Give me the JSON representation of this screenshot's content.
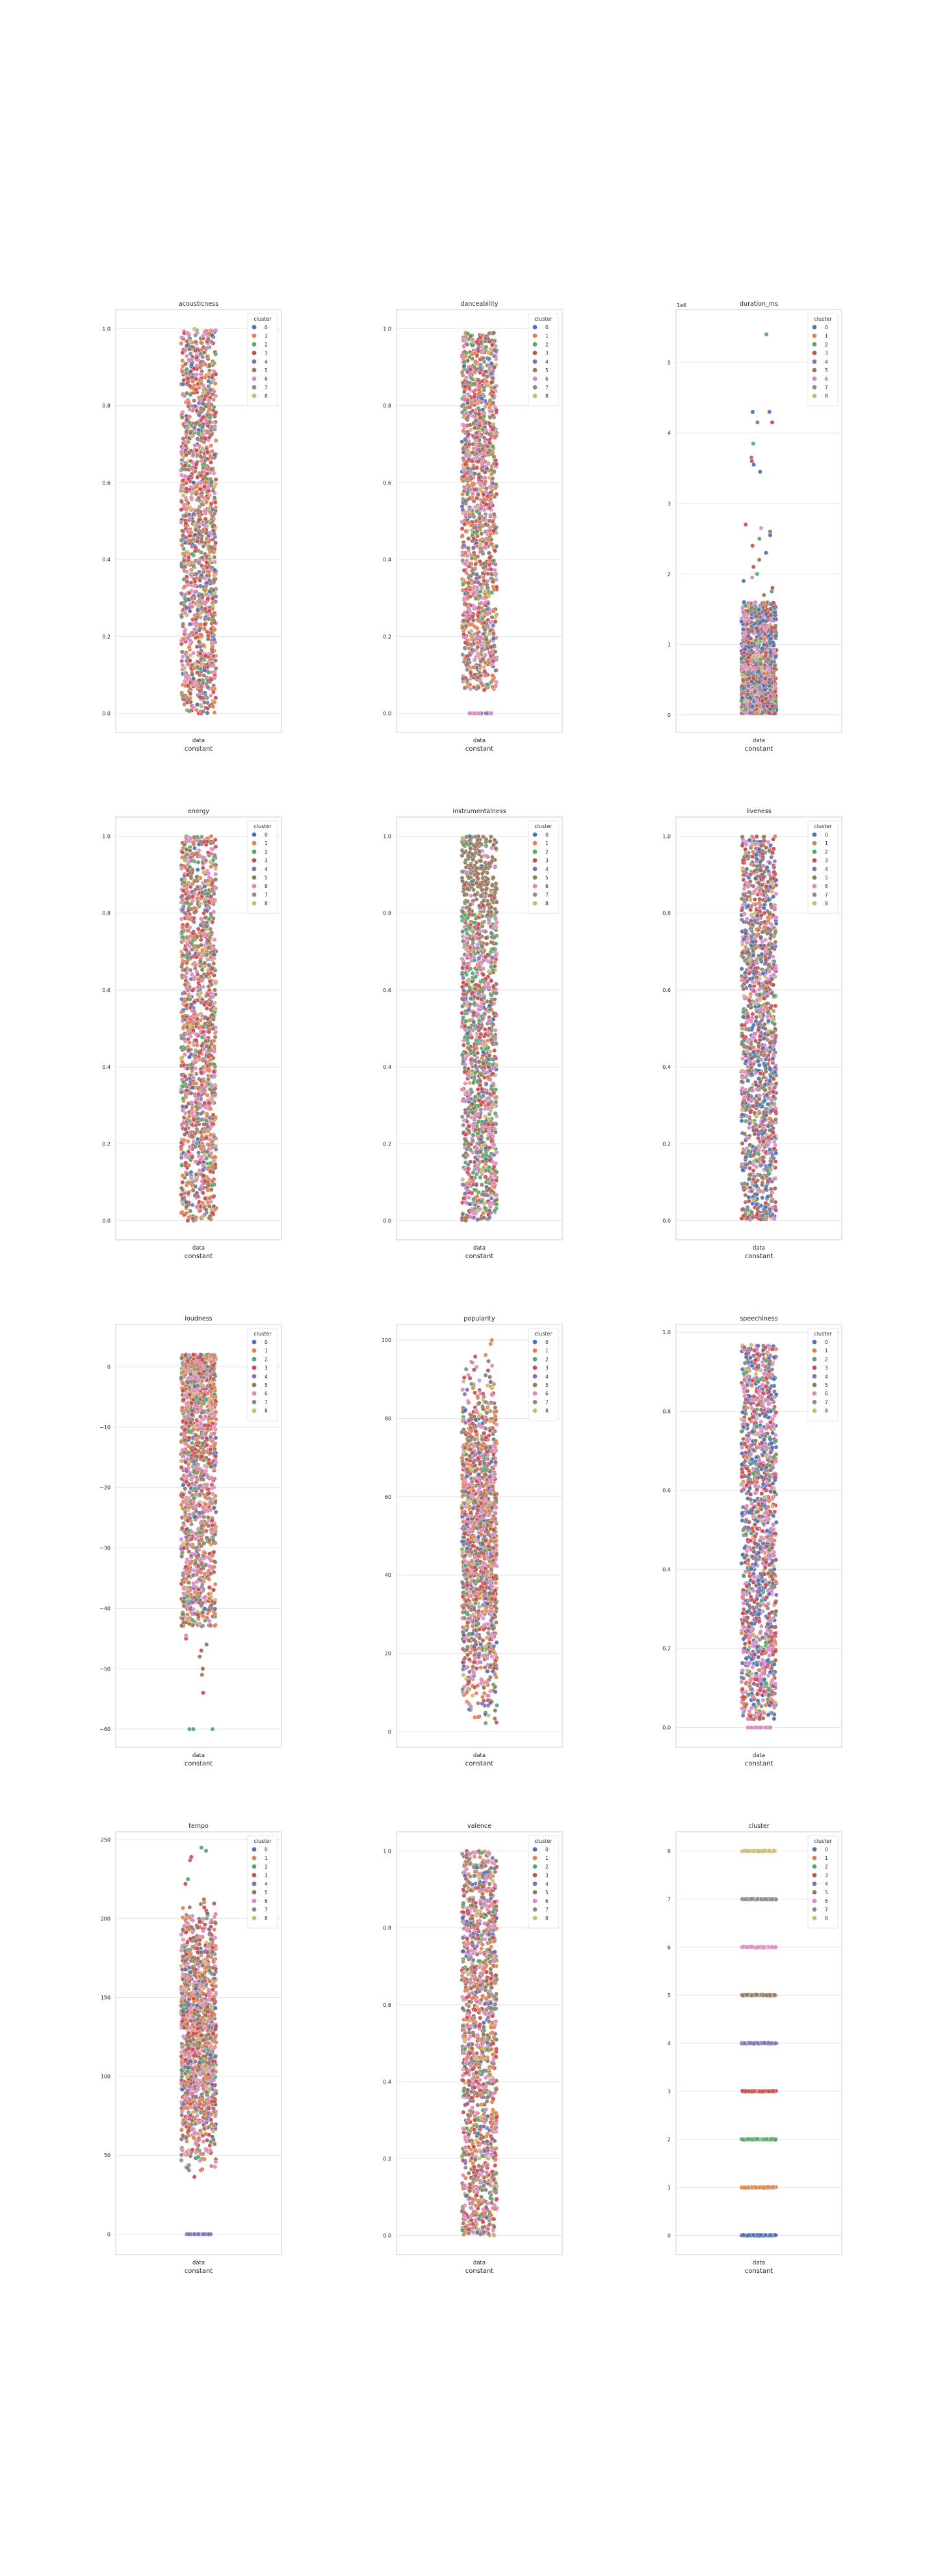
{
  "figure": {
    "legend_title": "cluster",
    "legend_labels": [
      "0",
      "1",
      "2",
      "3",
      "4",
      "5",
      "6",
      "7",
      "8"
    ],
    "xtick_label": "data",
    "xlabel": "constant",
    "palette": [
      "#4c72b0",
      "#dd8452",
      "#55a868",
      "#c44e52",
      "#8172b3",
      "#937860",
      "#da8bc3",
      "#8c8c8c",
      "#ccb974"
    ]
  },
  "chart_data": [
    {
      "type": "scatter",
      "title": "acousticness",
      "ylim": [
        -0.05,
        1.05
      ],
      "yticks": [
        "0.0",
        "0.2",
        "0.4",
        "0.6",
        "0.8",
        "1.0"
      ],
      "ytick_values": [
        0,
        0.2,
        0.4,
        0.6,
        0.8,
        1.0
      ],
      "grid": true,
      "legend": "top-right",
      "distribution": {
        "min": 0.0,
        "max": 1.0
      },
      "dominant_clusters": [
        1,
        6,
        3,
        5
      ],
      "outliers": []
    },
    {
      "type": "scatter",
      "title": "danceability",
      "ylim": [
        -0.05,
        1.05
      ],
      "yticks": [
        "0.0",
        "0.2",
        "0.4",
        "0.6",
        "0.8",
        "1.0"
      ],
      "ytick_values": [
        0,
        0.2,
        0.4,
        0.6,
        0.8,
        1.0
      ],
      "grid": true,
      "legend": "top-right",
      "distribution": {
        "min": 0.06,
        "max": 0.99
      },
      "dominant_clusters": [
        1,
        3,
        6,
        5
      ],
      "zero_row": [
        {
          "cluster": 4,
          "y": 0
        },
        {
          "cluster": 6,
          "y": 0
        }
      ],
      "outliers": []
    },
    {
      "type": "scatter",
      "title": "duration_ms",
      "axis_offset_label": "1e6",
      "ylim": [
        -0.25,
        5.75
      ],
      "yticks": [
        "0",
        "1",
        "2",
        "3",
        "4",
        "5"
      ],
      "ytick_values": [
        0,
        1,
        2,
        3,
        4,
        5
      ],
      "grid": true,
      "legend": "top-right",
      "distribution": {
        "min": 0.02,
        "max": 1.6
      },
      "dominant_clusters": [
        6,
        5,
        3,
        0
      ],
      "outliers": [
        {
          "cluster": 2,
          "y": 5.4
        },
        {
          "cluster": 0,
          "y": 4.3
        },
        {
          "cluster": 0,
          "y": 4.3
        },
        {
          "cluster": 3,
          "y": 4.15
        },
        {
          "cluster": 5,
          "y": 4.15
        },
        {
          "cluster": 2,
          "y": 3.85
        },
        {
          "cluster": 5,
          "y": 3.65
        },
        {
          "cluster": 3,
          "y": 3.6
        },
        {
          "cluster": 0,
          "y": 3.55
        },
        {
          "cluster": 0,
          "y": 3.45
        },
        {
          "cluster": 3,
          "y": 2.7
        },
        {
          "cluster": 6,
          "y": 2.65
        },
        {
          "cluster": 5,
          "y": 2.6
        },
        {
          "cluster": 0,
          "y": 2.55
        },
        {
          "cluster": 2,
          "y": 2.5
        },
        {
          "cluster": 3,
          "y": 2.4
        },
        {
          "cluster": 0,
          "y": 2.3
        },
        {
          "cluster": 5,
          "y": 2.2
        },
        {
          "cluster": 3,
          "y": 2.1
        },
        {
          "cluster": 2,
          "y": 2.0
        },
        {
          "cluster": 6,
          "y": 1.95
        },
        {
          "cluster": 0,
          "y": 1.9
        },
        {
          "cluster": 3,
          "y": 1.8
        },
        {
          "cluster": 2,
          "y": 1.75
        },
        {
          "cluster": 5,
          "y": 1.7
        }
      ]
    },
    {
      "type": "scatter",
      "title": "energy",
      "ylim": [
        -0.05,
        1.05
      ],
      "yticks": [
        "0.0",
        "0.2",
        "0.4",
        "0.6",
        "0.8",
        "1.0"
      ],
      "ytick_values": [
        0,
        0.2,
        0.4,
        0.6,
        0.8,
        1.0
      ],
      "grid": true,
      "legend": "top-right",
      "distribution": {
        "min": 0.0,
        "max": 1.0
      },
      "dominant_clusters": [
        3,
        1,
        6,
        5
      ],
      "outliers": []
    },
    {
      "type": "scatter",
      "title": "instrumentalness",
      "ylim": [
        -0.05,
        1.05
      ],
      "yticks": [
        "0.0",
        "0.2",
        "0.4",
        "0.6",
        "0.8",
        "1.0"
      ],
      "ytick_values": [
        0,
        0.2,
        0.4,
        0.6,
        0.8,
        1.0
      ],
      "grid": true,
      "legend": "top-right",
      "distribution": {
        "min": 0.0,
        "max": 1.0
      },
      "dominant_clusters": [
        6,
        3,
        5,
        2
      ],
      "top_band": {
        "min": 0.8,
        "max": 1.0,
        "cluster": 5
      },
      "outliers": []
    },
    {
      "type": "scatter",
      "title": "liveness",
      "ylim": [
        -0.05,
        1.05
      ],
      "yticks": [
        "0.0",
        "0.2",
        "0.4",
        "0.6",
        "0.8",
        "1.0"
      ],
      "ytick_values": [
        0,
        0.2,
        0.4,
        0.6,
        0.8,
        1.0
      ],
      "grid": true,
      "legend": "top-right",
      "distribution": {
        "min": 0.0,
        "max": 1.0
      },
      "dominant_clusters": [
        0,
        3,
        6,
        5
      ],
      "outliers": []
    },
    {
      "type": "scatter",
      "title": "loudness",
      "ylim": [
        -63,
        7
      ],
      "yticks": [
        "0",
        "−10",
        "−20",
        "−30",
        "−40",
        "−50",
        "−60"
      ],
      "ytick_values": [
        0,
        -10,
        -20,
        -30,
        -40,
        -50,
        -60
      ],
      "grid": true,
      "legend": "top-right",
      "distribution": {
        "min": -43,
        "max": 2
      },
      "dominant_clusters": [
        3,
        5,
        6,
        1
      ],
      "outliers": [
        {
          "cluster": 2,
          "y": -60
        },
        {
          "cluster": 2,
          "y": -60
        },
        {
          "cluster": 2,
          "y": -60
        },
        {
          "cluster": 3,
          "y": -54
        },
        {
          "cluster": 5,
          "y": -51
        },
        {
          "cluster": 3,
          "y": -50
        },
        {
          "cluster": 5,
          "y": -48
        },
        {
          "cluster": 3,
          "y": -47
        },
        {
          "cluster": 5,
          "y": -46
        },
        {
          "cluster": 3,
          "y": -45
        },
        {
          "cluster": 6,
          "y": -44.5
        }
      ]
    },
    {
      "type": "scatter",
      "title": "popularity",
      "ylim": [
        -4,
        104
      ],
      "yticks": [
        "0",
        "20",
        "40",
        "60",
        "80",
        "100"
      ],
      "ytick_values": [
        0,
        20,
        40,
        60,
        80,
        100
      ],
      "grid": true,
      "legend": "top-right",
      "distribution": {
        "min": 0,
        "max": 97
      },
      "dominant_clusters": [
        1,
        6,
        3,
        5
      ],
      "outliers": [
        {
          "cluster": 1,
          "y": 99
        },
        {
          "cluster": 1,
          "y": 100
        }
      ]
    },
    {
      "type": "scatter",
      "title": "speechiness",
      "ylim": [
        -0.05,
        1.02
      ],
      "yticks": [
        "0.0",
        "0.2",
        "0.4",
        "0.6",
        "0.8",
        "1.0"
      ],
      "ytick_values": [
        0,
        0.2,
        0.4,
        0.6,
        0.8,
        1.0
      ],
      "grid": true,
      "legend": "top-right",
      "distribution": {
        "min": 0.02,
        "max": 0.97
      },
      "dominant_clusters": [
        0,
        3,
        6
      ],
      "zero_row": [
        {
          "cluster": 5,
          "y": 0
        },
        {
          "cluster": 6,
          "y": 0
        }
      ],
      "outliers": []
    },
    {
      "type": "scatter",
      "title": "tempo",
      "ylim": [
        -13,
        255
      ],
      "yticks": [
        "0",
        "50",
        "100",
        "150",
        "200",
        "250"
      ],
      "ytick_values": [
        0,
        50,
        100,
        150,
        200,
        250
      ],
      "grid": true,
      "legend": "top-right",
      "distribution": {
        "min": 32,
        "max": 215
      },
      "dominant_clusters": [
        3,
        6,
        5,
        1
      ],
      "zero_row": [
        {
          "cluster": 6,
          "y": 0
        },
        {
          "cluster": 4,
          "y": 0
        }
      ],
      "outliers": [
        {
          "cluster": 2,
          "y": 245
        },
        {
          "cluster": 2,
          "y": 243
        },
        {
          "cluster": 3,
          "y": 239
        },
        {
          "cluster": 5,
          "y": 237
        },
        {
          "cluster": 2,
          "y": 225
        },
        {
          "cluster": 3,
          "y": 222
        }
      ]
    },
    {
      "type": "scatter",
      "title": "valence",
      "ylim": [
        -0.05,
        1.05
      ],
      "yticks": [
        "0.0",
        "0.2",
        "0.4",
        "0.6",
        "0.8",
        "1.0"
      ],
      "ytick_values": [
        0,
        0.2,
        0.4,
        0.6,
        0.8,
        1.0
      ],
      "grid": true,
      "legend": "top-right",
      "distribution": {
        "min": 0.0,
        "max": 1.0
      },
      "dominant_clusters": [
        3,
        5,
        6,
        1
      ],
      "outliers": []
    },
    {
      "type": "scatter",
      "title": "cluster",
      "ylim": [
        -0.4,
        8.4
      ],
      "yticks": [
        "0",
        "1",
        "2",
        "3",
        "4",
        "5",
        "6",
        "7",
        "8"
      ],
      "ytick_values": [
        0,
        1,
        2,
        3,
        4,
        5,
        6,
        7,
        8
      ],
      "grid": true,
      "legend": "top-right",
      "categorical_rows": [
        0,
        1,
        2,
        3,
        4,
        5,
        6,
        7,
        8
      ],
      "outliers": []
    }
  ]
}
